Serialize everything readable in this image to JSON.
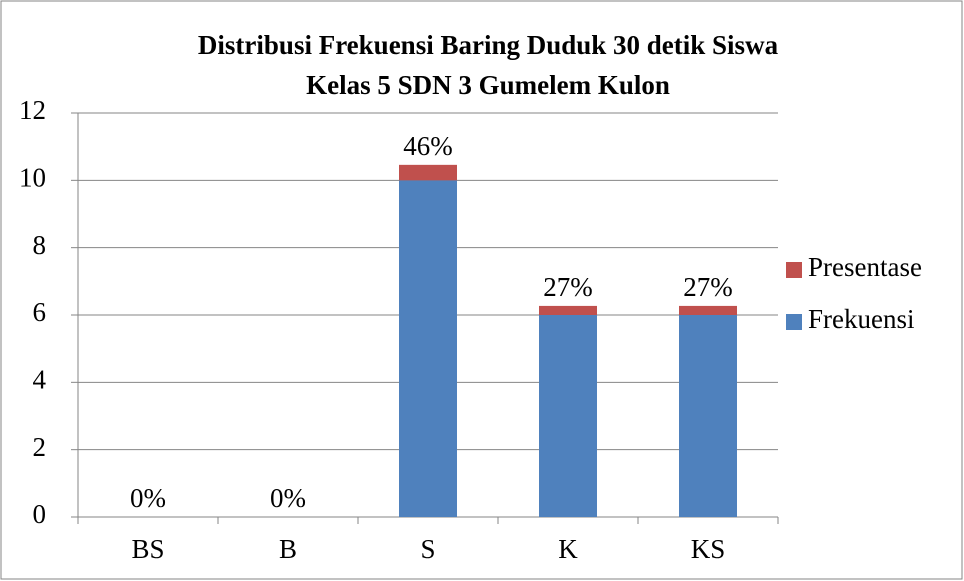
{
  "chart_data": {
    "type": "bar",
    "stacked": true,
    "title": [
      "Distribusi Frekuensi Baring Duduk 30 detik Siswa",
      "Kelas 5 SDN 3 Gumelem Kulon"
    ],
    "categories": [
      "BS",
      "B",
      "S",
      "K",
      "KS"
    ],
    "series": [
      {
        "name": "Frekuensi",
        "color": "#4f81bd",
        "values": [
          0,
          0,
          10,
          6,
          6
        ]
      },
      {
        "name": "Presentase",
        "color": "#c0504d",
        "values": [
          0,
          0,
          0.46,
          0.27,
          0.27
        ],
        "value_labels": [
          "0%",
          "0%",
          "46%",
          "27%",
          "27%"
        ]
      }
    ],
    "ylim": [
      0,
      12
    ],
    "yticks": [
      0,
      2,
      4,
      6,
      8,
      10,
      12
    ],
    "grid": true,
    "legend": "right"
  }
}
